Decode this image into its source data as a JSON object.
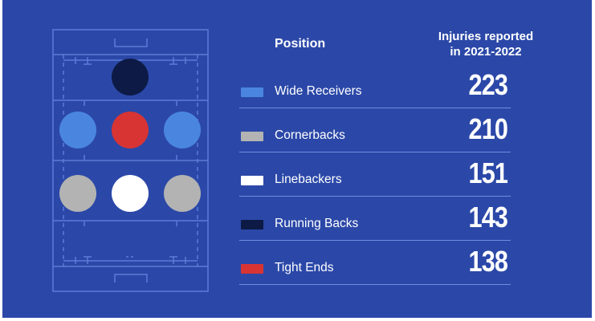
{
  "header": {
    "position": "Position",
    "injuries_line1": "Injuries reported",
    "injuries_line2": "in 2021-2022"
  },
  "colors": {
    "background": "#2b48a8",
    "wide_receivers": "#4a86e0",
    "cornerbacks": "#b3b3b3",
    "linebackers": "#ffffff",
    "running_backs": "#0c1a45",
    "tight_ends": "#d83434",
    "field_lines": "#5d7bd6"
  },
  "chart_data": {
    "type": "table",
    "columns": [
      "Position",
      "Injuries reported in 2021-2022"
    ],
    "categories": [
      "Wide Receivers",
      "Cornerbacks",
      "Linebackers",
      "Running Backs",
      "Tight Ends"
    ],
    "values": [
      223,
      210,
      151,
      143,
      138
    ],
    "rows": [
      {
        "label": "Wide Receivers",
        "value": "223",
        "color": "#4a86e0"
      },
      {
        "label": "Cornerbacks",
        "value": "210",
        "color": "#b3b3b3"
      },
      {
        "label": "Linebackers",
        "value": "151",
        "color": "#ffffff"
      },
      {
        "label": "Running Backs",
        "value": "143",
        "color": "#0c1a45"
      },
      {
        "label": "Tight Ends",
        "value": "138",
        "color": "#d83434"
      }
    ]
  }
}
